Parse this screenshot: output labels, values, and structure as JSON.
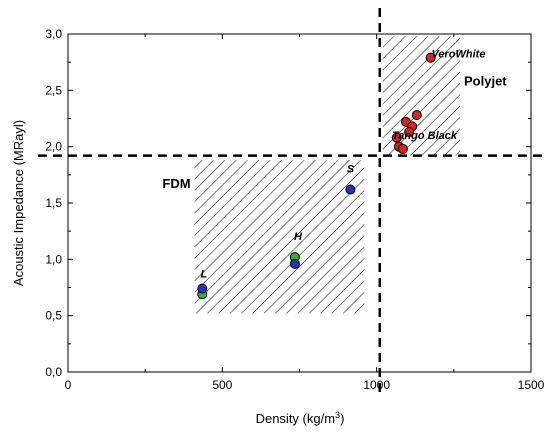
{
  "chart_data": {
    "type": "scatter",
    "xlabel": "Density (kg/m",
    "xlabel_sup": "3",
    "xlabel_close": ")",
    "ylabel": "Acoustic Impedance (MRayl)",
    "xlim": [
      0,
      1500
    ],
    "ylim": [
      0,
      3.0
    ],
    "x_ticks": [
      {
        "value": 0,
        "label": "0"
      },
      {
        "value": 500,
        "label": "500"
      },
      {
        "value": 1000,
        "label": "1000"
      },
      {
        "value": 1500,
        "label": "1500"
      }
    ],
    "y_ticks": [
      {
        "value": 0,
        "label": "0,0"
      },
      {
        "value": 0.5,
        "label": "0,5"
      },
      {
        "value": 1.0,
        "label": "1,0"
      },
      {
        "value": 1.5,
        "label": "1,5"
      },
      {
        "value": 2.0,
        "label": "2,0"
      },
      {
        "value": 2.5,
        "label": "2,5"
      },
      {
        "value": 3.0,
        "label": "3,0"
      }
    ],
    "grid": false,
    "threshold_lines": {
      "x": 1010,
      "y": 1.92
    },
    "regions": [
      {
        "label": "FDM",
        "x_range": [
          410,
          960
        ],
        "y_range": [
          0.52,
          1.88
        ]
      },
      {
        "label": "Polyjet",
        "x_range": [
          1020,
          1270
        ],
        "y_range": [
          1.92,
          2.98
        ]
      }
    ],
    "series": [
      {
        "color": "#22bb22",
        "points": [
          {
            "x": 435,
            "y": 0.69
          },
          {
            "x": 735,
            "y": 1.02
          }
        ]
      },
      {
        "color": "#2233cc",
        "points": [
          {
            "x": 435,
            "y": 0.74
          },
          {
            "x": 735,
            "y": 0.96
          },
          {
            "x": 915,
            "y": 1.62
          }
        ]
      },
      {
        "color": "#dd2222",
        "points": [
          {
            "x": 1175,
            "y": 2.79
          },
          {
            "x": 1130,
            "y": 2.28
          },
          {
            "x": 1095,
            "y": 2.22
          },
          {
            "x": 1115,
            "y": 2.18
          },
          {
            "x": 1105,
            "y": 2.13
          },
          {
            "x": 1065,
            "y": 2.08
          },
          {
            "x": 1072,
            "y": 2.0
          },
          {
            "x": 1085,
            "y": 1.98
          }
        ]
      }
    ],
    "annotations": [
      {
        "text": "L",
        "x": 440,
        "y": 0.84
      },
      {
        "text": "H",
        "x": 745,
        "y": 1.17
      },
      {
        "text": "S",
        "x": 915,
        "y": 1.77
      },
      {
        "text": "VeroWhite",
        "x": 1265,
        "y": 2.79
      },
      {
        "text": "Tango Black",
        "x": 1155,
        "y": 2.07
      }
    ]
  }
}
